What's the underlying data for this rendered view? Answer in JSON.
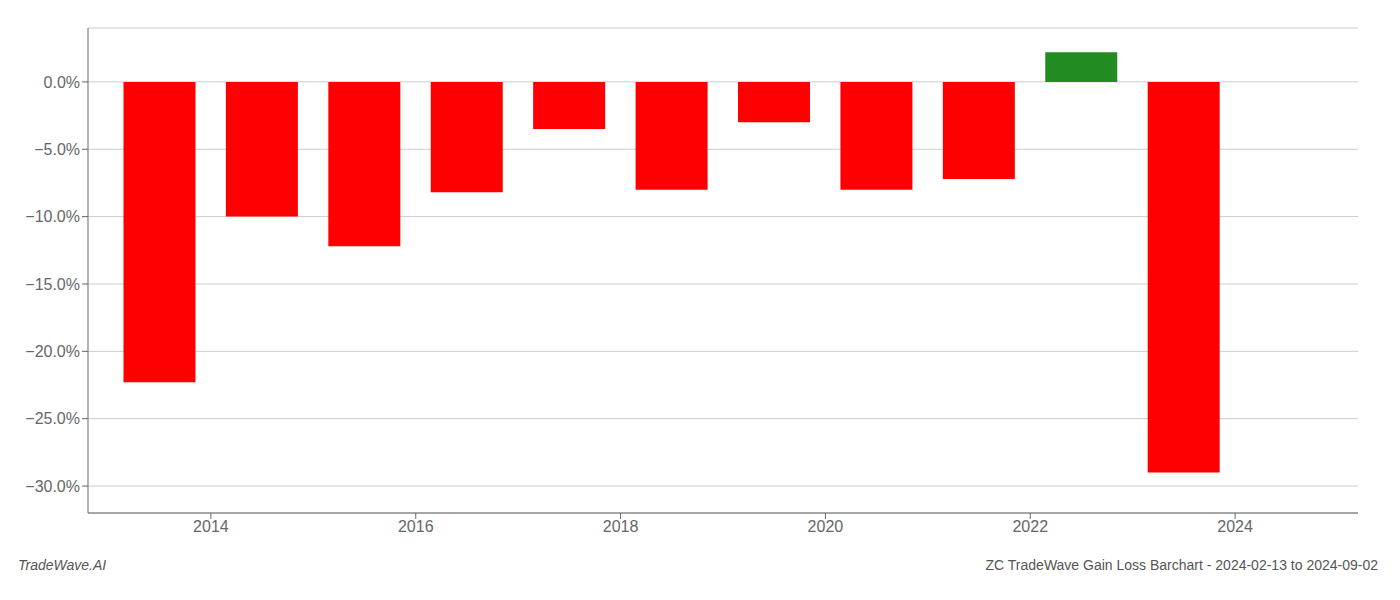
{
  "chart_data": {
    "type": "bar",
    "x": [
      2013.5,
      2014.5,
      2015.5,
      2016.5,
      2017.5,
      2018.5,
      2019.5,
      2020.5,
      2021.5,
      2022.5,
      2023.5
    ],
    "values": [
      -22.3,
      -10.0,
      -12.2,
      -8.2,
      -3.5,
      -8.0,
      -3.0,
      -8.0,
      -7.2,
      2.2,
      -29.0
    ],
    "colors": [
      "#ff0000",
      "#ff0000",
      "#ff0000",
      "#ff0000",
      "#ff0000",
      "#ff0000",
      "#ff0000",
      "#ff0000",
      "#ff0000",
      "#228B22",
      "#ff0000"
    ],
    "xlim": [
      2012.8,
      2025.2
    ],
    "xticks": [
      2014,
      2016,
      2018,
      2020,
      2022,
      2024
    ],
    "ylim": [
      -32,
      4
    ],
    "yticks": [
      {
        "value": 0.0,
        "label": "0.0%"
      },
      {
        "value": -5.0,
        "label": "−5.0%"
      },
      {
        "value": -10.0,
        "label": "−10.0%"
      },
      {
        "value": -15.0,
        "label": "−15.0%"
      },
      {
        "value": -20.0,
        "label": "−20.0%"
      },
      {
        "value": -25.0,
        "label": "−25.0%"
      },
      {
        "value": -30.0,
        "label": "−30.0%"
      }
    ],
    "grid": true,
    "annotations": [
      "TradeWave.AI",
      "ZC TradeWave Gain Loss Barchart - 2024-02-13 to 2024-09-02"
    ]
  }
}
